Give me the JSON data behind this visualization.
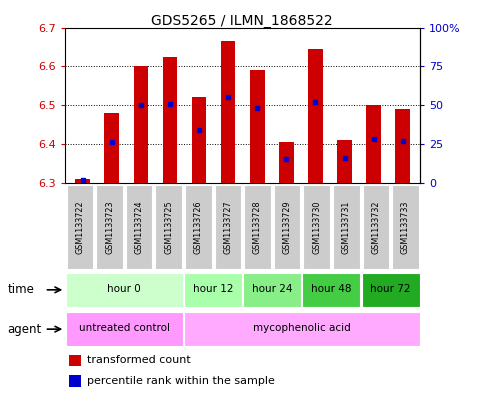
{
  "title": "GDS5265 / ILMN_1868522",
  "samples": [
    "GSM1133722",
    "GSM1133723",
    "GSM1133724",
    "GSM1133725",
    "GSM1133726",
    "GSM1133727",
    "GSM1133728",
    "GSM1133729",
    "GSM1133730",
    "GSM1133731",
    "GSM1133732",
    "GSM1133733"
  ],
  "transformed_count": [
    6.31,
    6.48,
    6.6,
    6.625,
    6.52,
    6.665,
    6.59,
    6.405,
    6.645,
    6.41,
    6.5,
    6.49
  ],
  "percentile_rank": [
    2,
    26,
    50,
    51,
    34,
    55,
    48,
    15,
    52,
    16,
    28,
    27
  ],
  "ylim_left": [
    6.3,
    6.7
  ],
  "ylim_right": [
    0,
    100
  ],
  "yticks_left": [
    6.3,
    6.4,
    6.5,
    6.6,
    6.7
  ],
  "yticks_right": [
    0,
    25,
    50,
    75,
    100
  ],
  "ytick_labels_right": [
    "0",
    "25",
    "50",
    "75",
    "100%"
  ],
  "bar_color": "#cc0000",
  "dot_color": "#0000cc",
  "bar_bottom": 6.3,
  "time_groups": [
    {
      "label": "hour 0",
      "start": 0,
      "end": 4,
      "color": "#ccffcc"
    },
    {
      "label": "hour 12",
      "start": 4,
      "end": 6,
      "color": "#aaffaa"
    },
    {
      "label": "hour 24",
      "start": 6,
      "end": 8,
      "color": "#88ee88"
    },
    {
      "label": "hour 48",
      "start": 8,
      "end": 10,
      "color": "#44cc44"
    },
    {
      "label": "hour 72",
      "start": 10,
      "end": 12,
      "color": "#22aa22"
    }
  ],
  "agent_groups": [
    {
      "label": "untreated control",
      "start": 0,
      "end": 4,
      "color": "#ff99ff"
    },
    {
      "label": "mycophenolic acid",
      "start": 4,
      "end": 12,
      "color": "#ffaaff"
    }
  ],
  "legend_red_label": "transformed count",
  "legend_blue_label": "percentile rank within the sample",
  "label_time": "time",
  "label_agent": "agent",
  "sample_box_color": "#cccccc",
  "bg_color": "#ffffff",
  "tick_color_left": "#cc0000",
  "tick_color_right": "#0000cc"
}
